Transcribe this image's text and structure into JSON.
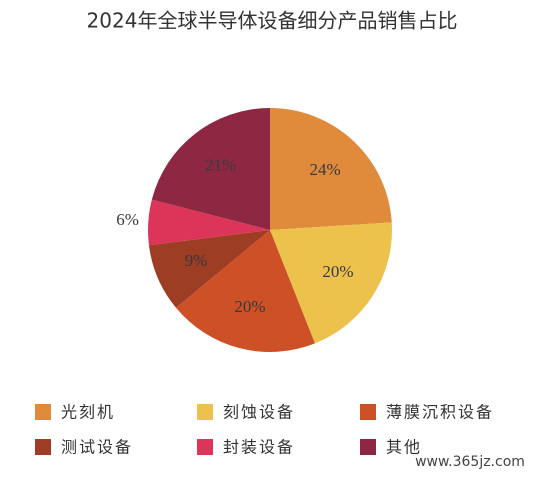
{
  "chart_data": {
    "type": "pie",
    "title": "2024年全球半导体设备细分产品销售占比",
    "categories": [
      "光刻机",
      "刻蚀设备",
      "薄膜沉积设备",
      "测试设备",
      "封装设备",
      "其他"
    ],
    "values": [
      24,
      20,
      20,
      9,
      6,
      21
    ],
    "value_labels": [
      "24%",
      "20%",
      "20%",
      "9%",
      "6%",
      "21%"
    ],
    "colors": [
      "#e08a3c",
      "#ecc24c",
      "#cd5026",
      "#9c3d24",
      "#dc3559",
      "#8e2742"
    ],
    "start_angle": 0,
    "direction": "clockwise",
    "legend": "bottom",
    "watermark": "www.365jz.com"
  }
}
